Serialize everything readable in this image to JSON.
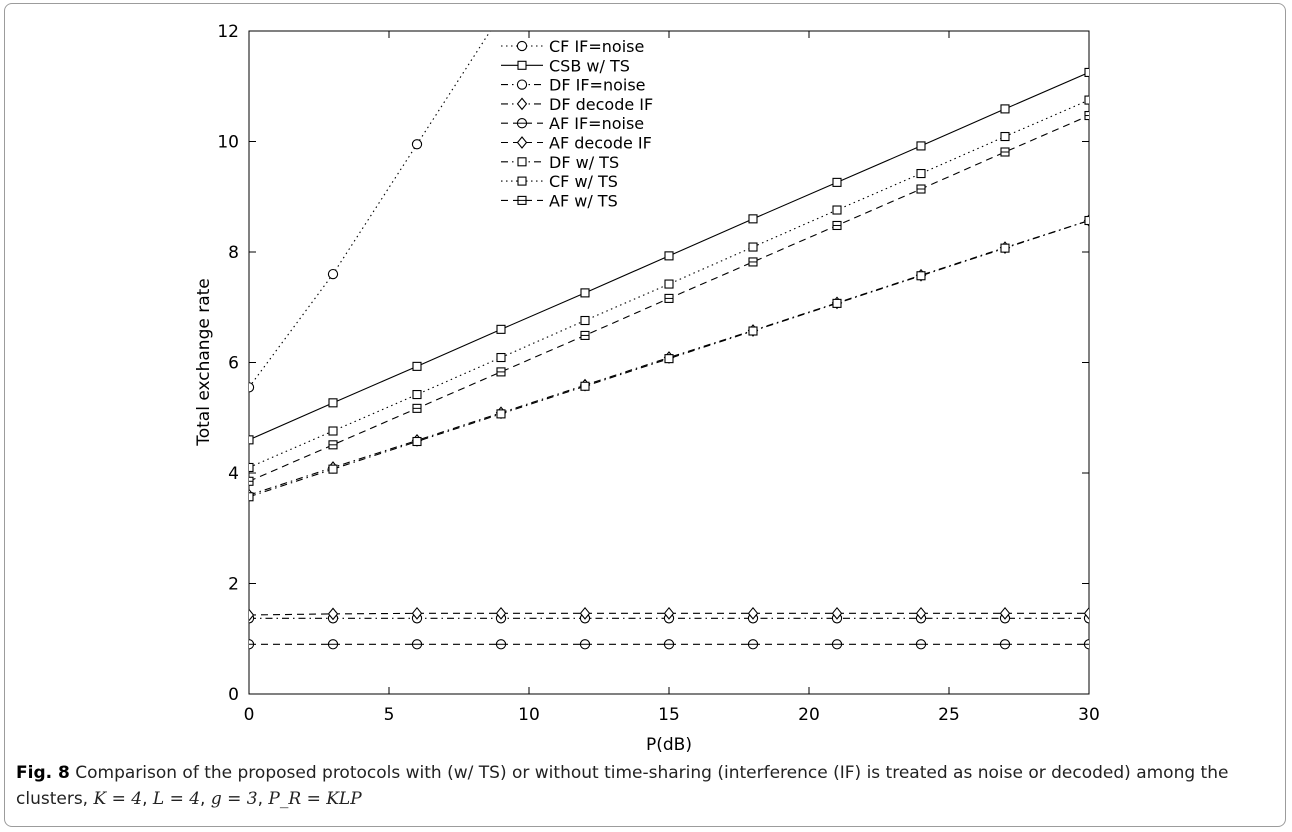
{
  "caption": {
    "fig_label": "Fig. 8",
    "text_line1": "Comparison of the proposed protocols with (w/ TS) or without time-sharing (interference (IF) is treated as noise or decoded) among the",
    "text_line2_prefix": "clusters,",
    "params": [
      "K = 4",
      "L = 4",
      "g = 3",
      "P_R = KLP"
    ]
  },
  "chart_data": {
    "type": "line",
    "title": "",
    "xlabel": "P(dB)",
    "ylabel": "Total exchange rate",
    "xlim": [
      0,
      30
    ],
    "ylim": [
      0,
      12
    ],
    "xticks": [
      0,
      5,
      10,
      15,
      20,
      25,
      30
    ],
    "yticks": [
      0,
      2,
      4,
      6,
      8,
      10,
      12
    ],
    "grid": false,
    "legend_position": "top-center",
    "x": [
      0,
      3,
      6,
      9,
      12,
      15,
      18,
      21,
      24,
      27,
      30
    ],
    "series": [
      {
        "name": "CF IF=noise",
        "line": "dotted",
        "marker": "circle",
        "values": [
          5.55,
          7.6,
          9.95,
          12.3,
          null,
          null,
          null,
          null,
          null,
          null,
          null
        ]
      },
      {
        "name": "CSB w/ TS",
        "line": "solid",
        "marker": "square",
        "values": [
          4.6,
          5.27,
          5.93,
          6.6,
          7.26,
          7.93,
          8.6,
          9.26,
          9.92,
          10.59,
          11.25
        ]
      },
      {
        "name": "DF IF=noise",
        "line": "dashdot",
        "marker": "circle",
        "values": [
          1.37,
          1.37,
          1.37,
          1.37,
          1.37,
          1.37,
          1.37,
          1.37,
          1.37,
          1.37,
          1.37
        ]
      },
      {
        "name": "DF decode IF",
        "line": "dashdot",
        "marker": "diamond",
        "values": [
          3.6,
          4.1,
          4.59,
          5.09,
          5.59,
          6.09,
          6.58,
          7.08,
          7.58,
          8.08,
          8.57
        ]
      },
      {
        "name": "AF IF=noise",
        "line": "dashed",
        "marker": "circle-bar",
        "values": [
          0.9,
          0.9,
          0.9,
          0.9,
          0.9,
          0.9,
          0.9,
          0.9,
          0.9,
          0.9,
          0.9
        ]
      },
      {
        "name": "AF decode IF",
        "line": "dashed",
        "marker": "diamond",
        "values": [
          1.43,
          1.45,
          1.46,
          1.46,
          1.46,
          1.46,
          1.46,
          1.46,
          1.46,
          1.46,
          1.46
        ]
      },
      {
        "name": "DF w/ TS",
        "line": "dashdot",
        "marker": "square",
        "values": [
          3.57,
          4.07,
          4.57,
          5.07,
          5.57,
          6.07,
          6.57,
          7.07,
          7.57,
          8.07,
          8.57
        ]
      },
      {
        "name": "CF w/ TS",
        "line": "dotted",
        "marker": "square",
        "values": [
          4.1,
          4.76,
          5.42,
          6.09,
          6.76,
          7.42,
          8.09,
          8.76,
          9.42,
          10.09,
          10.75
        ]
      },
      {
        "name": "AF w/ TS",
        "line": "dashed",
        "marker": "square-bar",
        "values": [
          3.85,
          4.51,
          5.17,
          5.83,
          6.49,
          7.16,
          7.82,
          8.48,
          9.14,
          9.81,
          10.47
        ]
      }
    ]
  },
  "colors": {
    "line": "#000000",
    "frame_border": "#9c9c9c",
    "caption_text": "#222222"
  }
}
